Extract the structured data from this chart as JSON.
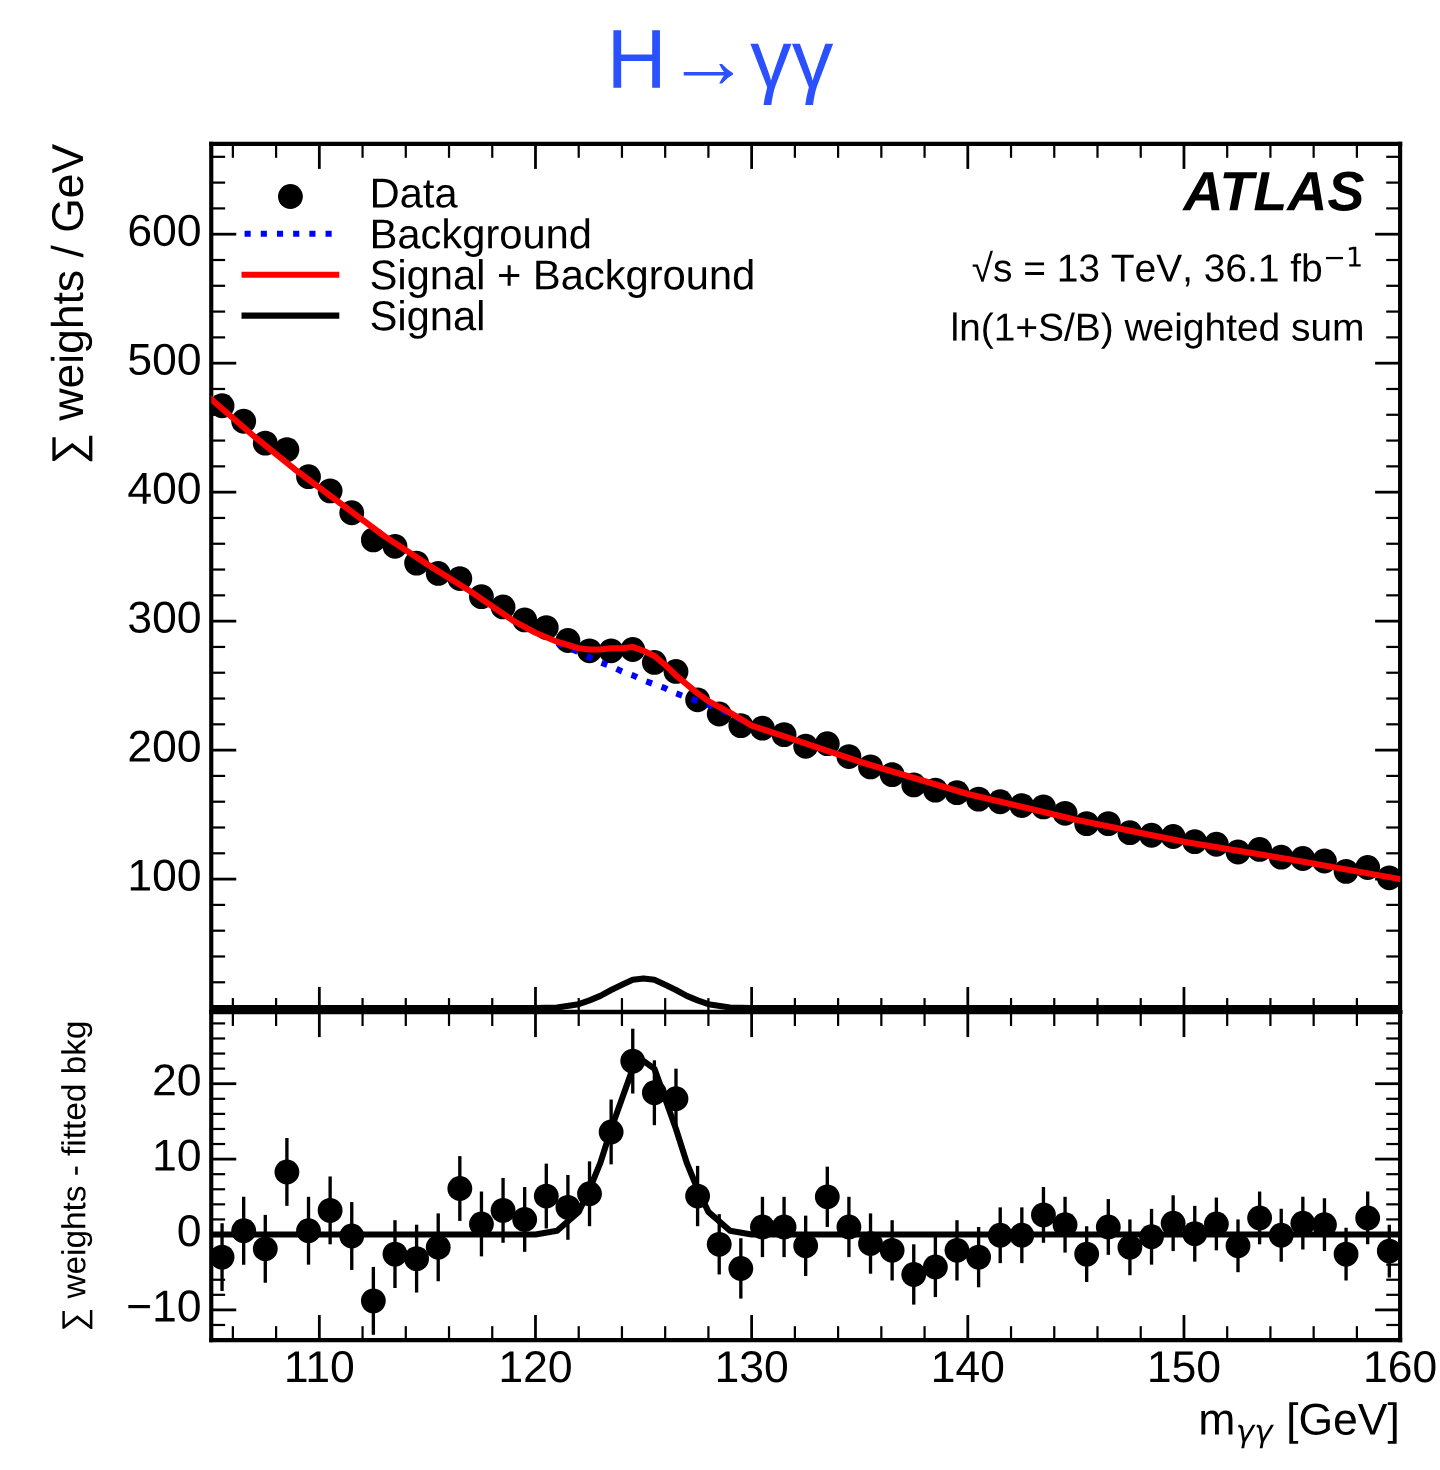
{
  "chart_data": [
    {
      "type": "line",
      "title": "H→γγ",
      "ylabel": "∑ weights / GeV",
      "xlim": [
        105,
        160
      ],
      "xticks": [
        110,
        120,
        130,
        140,
        150,
        160
      ],
      "ylim": [
        -3,
        670
      ],
      "yticks": [
        100,
        200,
        300,
        400,
        500,
        600
      ],
      "tick_labels": "y",
      "grid": false,
      "legend": "top left",
      "annotations": [
        "ATLAS",
        "√s = 13 TeV, 36.1 fb$^{−1}$",
        "ln(1+S/B) weighted sum"
      ],
      "series": [
        {
          "name": "Data",
          "type": "scatter",
          "color": "#000000",
          "marker": "circle",
          "x": [
            105.5,
            106.5,
            107.5,
            108.5,
            109.5,
            110.5,
            111.5,
            112.5,
            113.5,
            114.5,
            115.5,
            116.5,
            117.5,
            118.5,
            119.5,
            120.5,
            121.5,
            122.5,
            123.5,
            124.5,
            125.5,
            126.5,
            127.5,
            128.5,
            129.5,
            130.5,
            131.5,
            132.5,
            133.5,
            134.5,
            135.5,
            136.5,
            137.5,
            138.5,
            139.5,
            140.5,
            141.5,
            142.5,
            143.5,
            144.5,
            145.5,
            146.5,
            147.5,
            148.5,
            149.5,
            150.5,
            151.5,
            152.5,
            153.5,
            154.5,
            155.5,
            156.5,
            157.5,
            158.5,
            159.5
          ],
          "values": [
            467,
            455,
            438,
            433,
            412,
            401,
            384,
            363,
            358,
            345,
            337,
            333,
            319,
            311,
            301,
            295,
            285,
            277,
            277,
            278,
            268,
            261,
            239,
            228,
            219,
            217,
            212,
            203,
            205,
            195,
            187,
            181,
            173,
            169,
            167,
            162,
            160,
            157,
            156,
            151,
            143,
            143,
            136,
            134,
            133,
            129,
            127,
            121,
            123,
            117,
            116,
            114,
            106,
            109,
            101
          ]
        },
        {
          "name": "Background",
          "color": "#0000ff",
          "line_style": "dotted",
          "x": [
            121,
            122,
            122.5,
            123,
            123.5,
            124,
            124.5,
            125,
            125.5,
            126,
            126.5,
            127,
            127.5,
            128,
            129,
            130
          ],
          "values": [
            283,
            276,
            272,
            268,
            265,
            261,
            258,
            254,
            251,
            248,
            244,
            241,
            238,
            235,
            228,
            219
          ]
        },
        {
          "name": "Signal + Background",
          "color": "#ff0000",
          "line_style": "solid",
          "x": [
            105,
            107,
            109,
            111,
            113,
            115,
            117,
            119,
            120,
            121,
            122,
            122.5,
            123,
            123.5,
            124,
            124.5,
            125,
            125.5,
            126,
            126.5,
            127,
            127.5,
            128,
            129,
            130,
            132,
            135,
            140,
            145,
            150,
            155,
            160
          ],
          "values": [
            472,
            443,
            416,
            391,
            366,
            344,
            323,
            300,
            291,
            284,
            279,
            278,
            278,
            279,
            279,
            280,
            277,
            273,
            266,
            258,
            251,
            244,
            238,
            229,
            219,
            208,
            191,
            166,
            146,
            129,
            115,
            100
          ]
        },
        {
          "name": "Signal",
          "color": "#000000",
          "line_style": "solid",
          "x": [
            105,
            115,
            119,
            120,
            121,
            122,
            122.5,
            123,
            123.5,
            124,
            124.5,
            125,
            125.5,
            126,
            126.5,
            127,
            127.5,
            128,
            129,
            130,
            132,
            140,
            160
          ],
          "values": [
            0,
            0,
            0,
            0,
            0.5,
            3,
            6,
            9.5,
            14,
            18,
            22,
            23,
            22,
            18,
            14,
            9.5,
            6,
            3,
            0.5,
            0,
            0,
            0,
            0
          ]
        }
      ]
    },
    {
      "type": "scatter",
      "xlabel": "m$_{γγ}$ [GeV]",
      "ylabel": "∑ weights - fitted bkg",
      "xlim": [
        105,
        160
      ],
      "xticks": [
        110,
        120,
        130,
        140,
        150,
        160
      ],
      "ylim": [
        -14,
        29.5
      ],
      "yticks": [
        {
          "value": -10,
          "label": "−10"
        },
        0,
        10,
        20
      ],
      "grid": false,
      "series": [
        {
          "color": "#000000",
          "marker": "circle",
          "x": [
            105.5,
            106.5,
            107.5,
            108.5,
            109.5,
            110.5,
            111.5,
            112.5,
            113.5,
            114.5,
            115.5,
            116.5,
            117.5,
            118.5,
            119.5,
            120.5,
            121.5,
            122.5,
            123.5,
            124.5,
            125.5,
            126.5,
            127.5,
            128.5,
            129.5,
            130.5,
            131.5,
            132.5,
            133.5,
            134.5,
            135.5,
            136.5,
            137.5,
            138.5,
            139.5,
            140.5,
            141.5,
            142.5,
            143.5,
            144.5,
            145.5,
            146.5,
            147.5,
            148.5,
            149.5,
            150.5,
            151.5,
            152.5,
            153.5,
            154.5,
            155.5,
            156.5,
            157.5,
            158.5,
            159.5
          ],
          "values": [
            -3.0,
            0.5,
            -1.9,
            8.3,
            0.5,
            3.2,
            -0.2,
            -8.8,
            -2.6,
            -3.2,
            -1.7,
            6.1,
            1.4,
            3.2,
            2.0,
            5.1,
            3.6,
            5.4,
            13.6,
            23.0,
            18.8,
            18.0,
            5.1,
            -1.3,
            -4.5,
            1.0,
            1.0,
            -1.5,
            5.0,
            1.0,
            -1.2,
            -2.1,
            -5.3,
            -4.3,
            -2.1,
            -3.0,
            -0.1,
            -0.1,
            2.6,
            1.3,
            -2.6,
            1.0,
            -1.7,
            -0.3,
            1.5,
            0.1,
            1.4,
            -1.5,
            2.2,
            -0.1,
            1.5,
            1.3,
            -2.6,
            2.2,
            -2.2
          ],
          "errors": [
            4.5,
            4.5,
            4.5,
            4.5,
            4.5,
            4.5,
            4.5,
            4.5,
            4.5,
            4.5,
            4.5,
            4.3,
            4.3,
            4.3,
            4.3,
            4.3,
            4.3,
            4.3,
            4.3,
            4.3,
            4.3,
            4.0,
            4.0,
            4.0,
            4.0,
            4.0,
            4.0,
            4.0,
            4.0,
            4.0,
            4.0,
            4.0,
            4.0,
            4.0,
            4.0,
            4.0,
            3.7,
            3.7,
            3.7,
            3.7,
            3.7,
            3.7,
            3.7,
            3.7,
            3.7,
            3.7,
            3.5,
            3.5,
            3.5,
            3.5,
            3.5,
            3.5,
            3.5,
            3.5,
            3.5
          ]
        },
        {
          "type": "line",
          "color": "#000000",
          "line_style": "solid",
          "x": [
            105,
            115,
            119,
            120,
            121,
            122,
            122.5,
            123,
            123.5,
            124,
            124.5,
            125,
            125.5,
            126,
            126.5,
            127,
            127.5,
            128,
            129,
            130,
            132,
            140,
            160
          ],
          "values": [
            0,
            0,
            0,
            0,
            0.5,
            3,
            6,
            9.5,
            14,
            18,
            22,
            23,
            22,
            18,
            14,
            9.5,
            6,
            3,
            0.5,
            0,
            0,
            0,
            0
          ]
        }
      ]
    }
  ]
}
